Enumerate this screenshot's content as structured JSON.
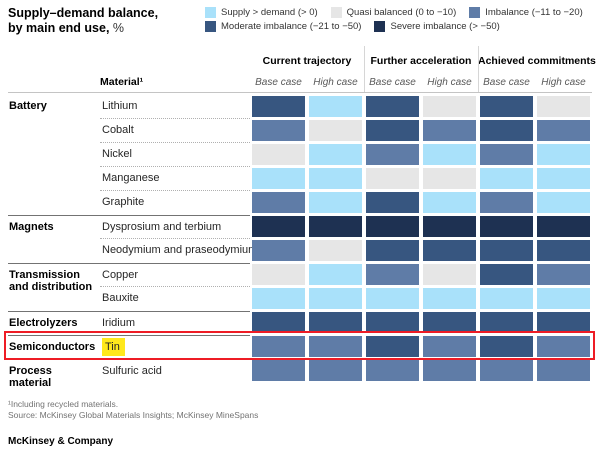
{
  "title": {
    "line1": "Supply–demand balance,",
    "line2": "by main end use,",
    "suffix": " %"
  },
  "colors": {
    "supply": "#A9E1FA",
    "quasi": "#E6E6E6",
    "imbalance": "#5F7CA7",
    "moderate": "#375680",
    "severe": "#1E3152",
    "highlight_yellow": "#FFE81C",
    "annotation_red": "#EE1C25"
  },
  "footnotes": [
    "¹Including recycled materials.",
    "Source: McKinsey Global Materials Insights; McKinsey MineSpans"
  ],
  "brand": "McKinsey & Company",
  "chart_data": {
    "type": "heatmap",
    "title": "Supply–demand balance, by main end use, %",
    "unit": "%",
    "material_header": "Material¹",
    "column_groups": [
      "Current trajectory",
      "Further acceleration",
      "Achieved commitments"
    ],
    "case_labels": [
      "Base case",
      "High case"
    ],
    "categories": [
      {
        "key": "supply",
        "label": "Supply > demand (> 0)"
      },
      {
        "key": "quasi",
        "label": "Quasi balanced (0 to −10)"
      },
      {
        "key": "imbalance",
        "label": "Imbalance (−11 to −20)"
      },
      {
        "key": "moderate",
        "label": "Moderate imbalance (−21 to −50)"
      },
      {
        "key": "severe",
        "label": "Severe imbalance (> −50)"
      }
    ],
    "rows": [
      {
        "group": "Battery",
        "material": "Lithium",
        "values": [
          "moderate",
          "supply",
          "moderate",
          "quasi",
          "moderate",
          "quasi"
        ]
      },
      {
        "group": "Battery",
        "material": "Cobalt",
        "values": [
          "imbalance",
          "quasi",
          "moderate",
          "imbalance",
          "moderate",
          "imbalance"
        ]
      },
      {
        "group": "Battery",
        "material": "Nickel",
        "values": [
          "quasi",
          "supply",
          "imbalance",
          "supply",
          "imbalance",
          "supply"
        ]
      },
      {
        "group": "Battery",
        "material": "Manganese",
        "values": [
          "supply",
          "supply",
          "quasi",
          "quasi",
          "supply",
          "supply"
        ]
      },
      {
        "group": "Battery",
        "material": "Graphite",
        "values": [
          "imbalance",
          "supply",
          "moderate",
          "supply",
          "imbalance",
          "supply"
        ]
      },
      {
        "group": "Magnets",
        "material": "Dysprosium and terbium",
        "values": [
          "severe",
          "severe",
          "severe",
          "severe",
          "severe",
          "severe"
        ]
      },
      {
        "group": "Magnets",
        "material": "Neodymium and praseodymium",
        "values": [
          "imbalance",
          "quasi",
          "moderate",
          "moderate",
          "moderate",
          "moderate"
        ]
      },
      {
        "group": "Transmission and distribution",
        "material": "Copper",
        "values": [
          "quasi",
          "supply",
          "imbalance",
          "quasi",
          "moderate",
          "imbalance"
        ]
      },
      {
        "group": "Transmission and distribution",
        "material": "Bauxite",
        "values": [
          "supply",
          "supply",
          "supply",
          "supply",
          "supply",
          "supply"
        ]
      },
      {
        "group": "Electrolyzers",
        "material": "Iridium",
        "values": [
          "moderate",
          "moderate",
          "moderate",
          "moderate",
          "moderate",
          "moderate"
        ]
      },
      {
        "group": "Semiconductors",
        "material": "Tin",
        "highlighted": true,
        "values": [
          "imbalance",
          "imbalance",
          "moderate",
          "imbalance",
          "moderate",
          "imbalance"
        ]
      },
      {
        "group": "Process material",
        "material": "Sulfuric acid",
        "values": [
          "imbalance",
          "imbalance",
          "imbalance",
          "imbalance",
          "imbalance",
          "imbalance"
        ]
      }
    ],
    "annotation": {
      "shape": "red-outline-box",
      "target_row": "Tin"
    }
  }
}
